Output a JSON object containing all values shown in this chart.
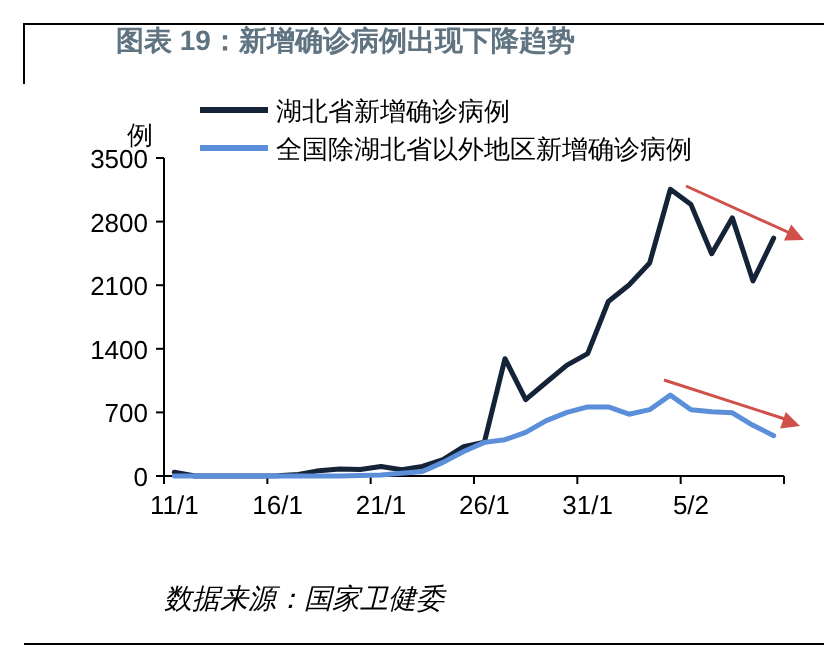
{
  "chart_data": {
    "type": "line",
    "title": "图表 19：新增确诊病例出现下降趋势",
    "ylabel": "例",
    "categories": [
      "11/1",
      null,
      null,
      null,
      null,
      "16/1",
      null,
      null,
      null,
      null,
      "21/1",
      null,
      null,
      null,
      null,
      "26/1",
      null,
      null,
      null,
      null,
      "31/1",
      null,
      null,
      null,
      null,
      "5/2",
      null,
      null,
      null,
      null
    ],
    "series": [
      {
        "name": "湖北省新增确诊病例",
        "color": "#142338",
        "values": [
          41,
          0,
          0,
          0,
          0,
          4,
          17,
          59,
          77,
          72,
          105,
          69,
          105,
          180,
          323,
          371,
          1291,
          840,
          1032,
          1220,
          1347,
          1921,
          2103,
          2345,
          3156,
          2987,
          2447,
          2841,
          2147,
          2618
        ]
      },
      {
        "name": "全国除湖北省以外地区新增确诊病例",
        "color": "#5b8fd9",
        "values": [
          0,
          0,
          0,
          0,
          0,
          0,
          0,
          0,
          0,
          5,
          10,
          30,
          50,
          150,
          270,
          370,
          400,
          480,
          610,
          700,
          760,
          760,
          680,
          730,
          890,
          730,
          707,
          696,
          558,
          444
        ]
      }
    ],
    "ylim": [
      0,
      3500
    ],
    "yticks": [
      0,
      700,
      1400,
      2100,
      2800,
      3500
    ],
    "legend": "top",
    "grid": false,
    "marker": "none",
    "annotations": [
      "数据来源：国家卫健委"
    ]
  }
}
